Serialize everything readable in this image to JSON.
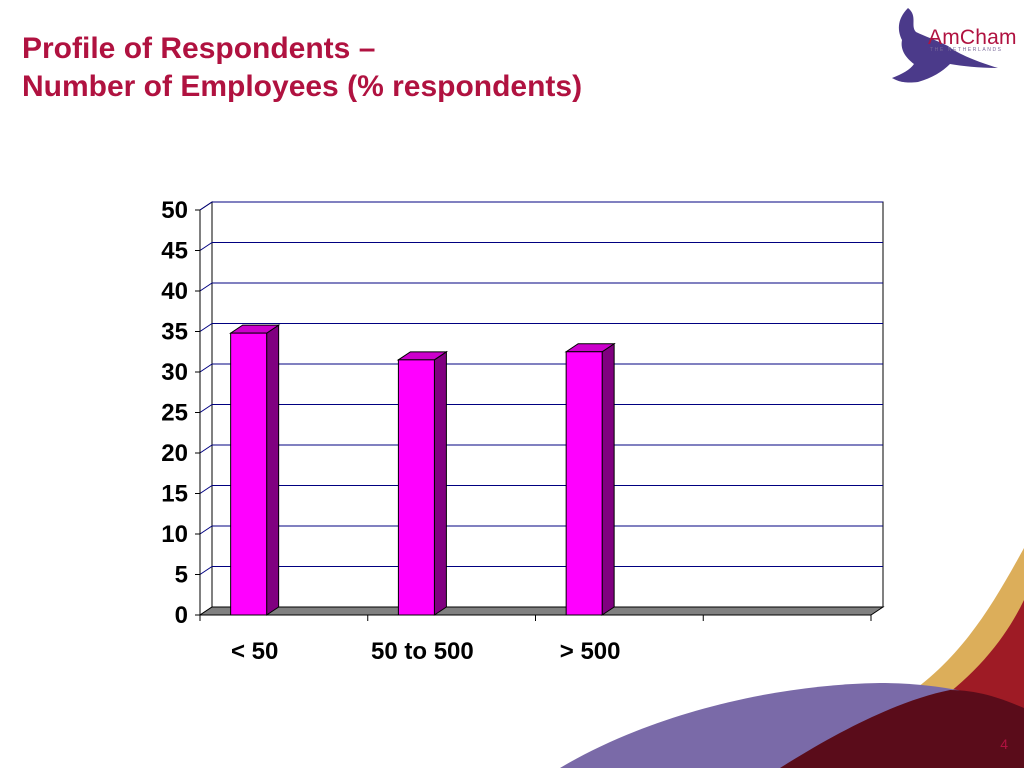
{
  "slide": {
    "title_line1": "Profile of Respondents –",
    "title_line2": "Number of Employees (% respondents)",
    "page_number": "4"
  },
  "logo": {
    "text": "AmCham",
    "subtitle": "THE NETHERLANDS"
  },
  "colors": {
    "title": "#b01240",
    "bar_front": "#ff00ff",
    "bar_top": "#cc00cc",
    "bar_side": "#800080",
    "floor": "#808080"
  },
  "chart_data": {
    "type": "bar",
    "categories": [
      "< 50",
      "50 to 500",
      "> 500",
      ""
    ],
    "values": [
      34.8,
      31.5,
      32.5,
      null
    ],
    "title": "",
    "xlabel": "",
    "ylabel": "",
    "ylim": [
      0,
      50
    ],
    "yticks": [
      0,
      5,
      10,
      15,
      20,
      25,
      30,
      35,
      40,
      45,
      50
    ],
    "grid": true,
    "legend": "none",
    "style": "3d-column"
  }
}
